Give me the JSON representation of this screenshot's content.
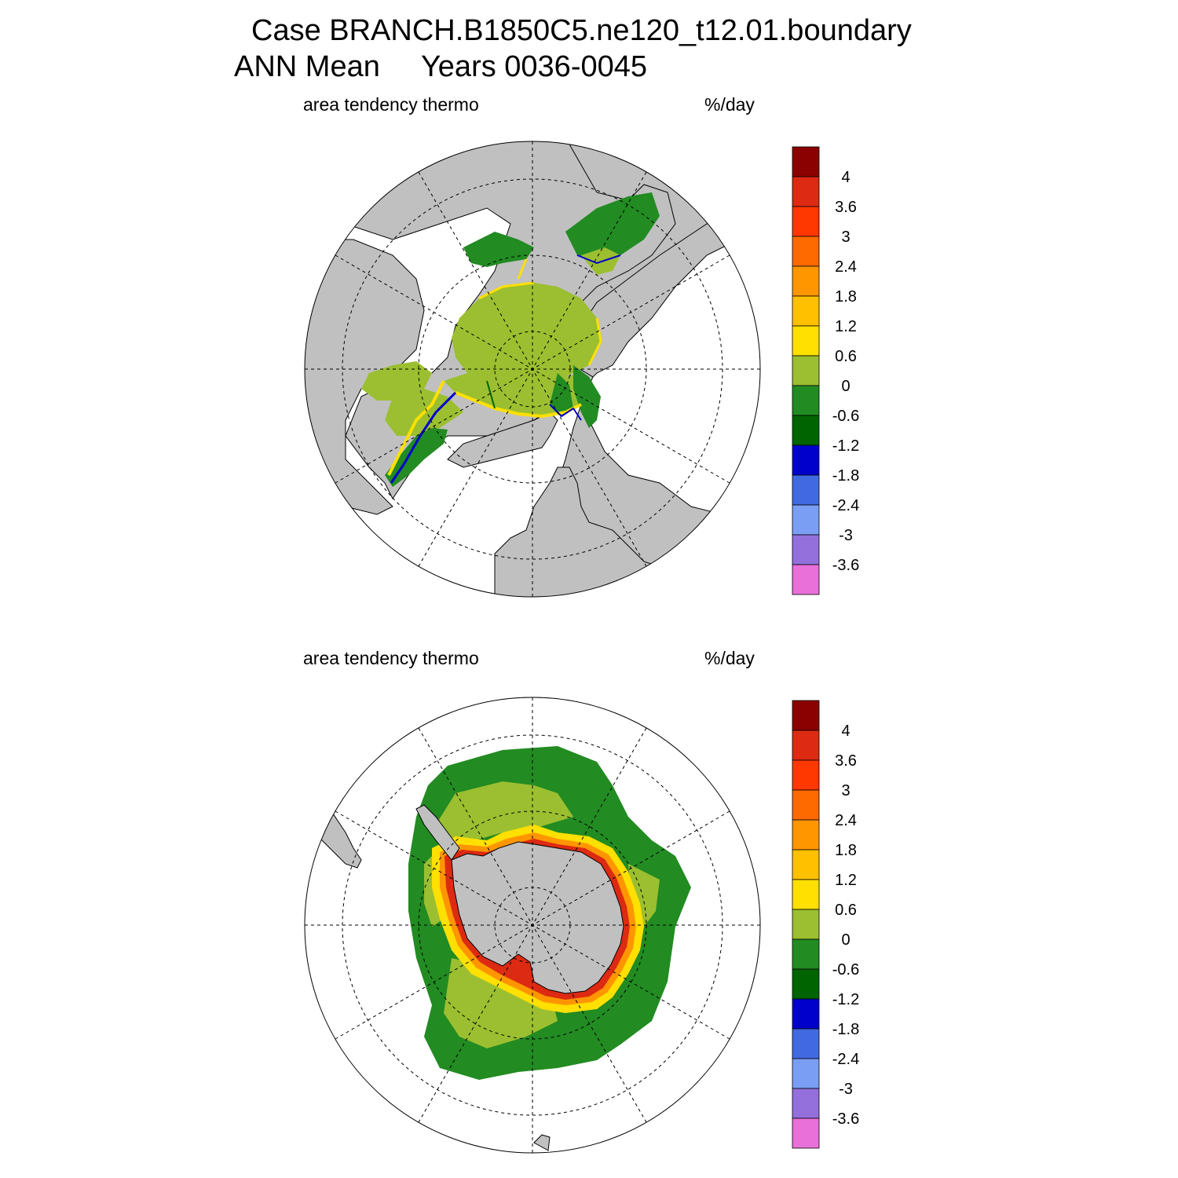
{
  "figure": {
    "title_line1": "Case BRANCH.B1850C5.ne120_t12.01.boundary",
    "title_line2": "ANN Mean     Years 0036-0045"
  },
  "colors": {
    "land": "#c0c0c0",
    "ocean": "#ffffff",
    "coast": "#000000"
  },
  "colorbar": {
    "labels": [
      "4",
      "3.6",
      "3",
      "2.4",
      "1.8",
      "1.2",
      "0.6",
      "0",
      "-0.6",
      "-1.2",
      "-1.8",
      "-2.4",
      "-3",
      "-3.6"
    ],
    "colors_top_to_bottom": [
      "#8b0000",
      "#dd2a12",
      "#ff3700",
      "#ff6a00",
      "#ff9600",
      "#ffc000",
      "#ffe000",
      "#9bbf30",
      "#228b22",
      "#006400",
      "#0000cd",
      "#4169e1",
      "#7b9ef5",
      "#9370db",
      "#e870d8"
    ]
  },
  "panels": [
    {
      "id": "north",
      "label_left": "area tendency thermo",
      "label_right": "%/day",
      "hemisphere": "Arctic"
    },
    {
      "id": "south",
      "label_left": "area tendency thermo",
      "label_right": "%/day",
      "hemisphere": "Antarctic"
    }
  ]
}
